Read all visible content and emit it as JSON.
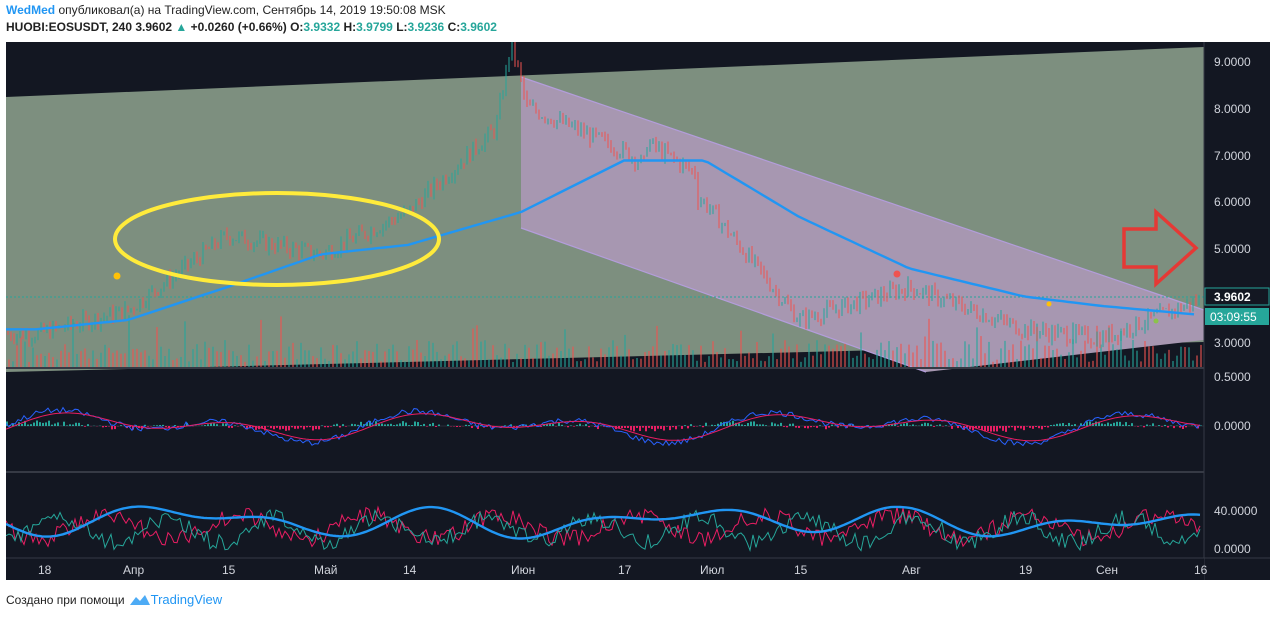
{
  "header": {
    "author": "WedMed",
    "published_text": "опубликовал(а) на TradingView.com, Сентябрь 14, 2019 19:50:08 MSK",
    "symbol": "HUOBI:EOSUSDT, 240",
    "last": "3.9602",
    "change_arrow": "▲",
    "change": "+0.0260 (+0.66%)",
    "o_label": "O:",
    "o": "3.9332",
    "h_label": "H:",
    "h": "3.9799",
    "l_label": "L:",
    "l": "3.9236",
    "c_label": "C:",
    "c": "3.9602"
  },
  "price_axis": {
    "ticks": [
      "9.0000",
      "8.0000",
      "7.0000",
      "6.0000",
      "5.0000",
      "3.0000"
    ],
    "last_price_label": "3.9602",
    "countdown_label": "03:09:55"
  },
  "macd_axis": {
    "ticks": [
      "0.5000",
      "0.0000"
    ]
  },
  "rsi_axis": {
    "ticks": [
      "40.0000",
      "0.0000"
    ]
  },
  "time_axis": {
    "ticks": [
      "18",
      "Апр",
      "15",
      "Май",
      "14",
      "Июн",
      "17",
      "Июл",
      "15",
      "Авг",
      "19",
      "Сен",
      "16"
    ]
  },
  "footer": {
    "created_with": "Создано при помощи",
    "brand": "TradingView"
  },
  "colors": {
    "background": "#131722",
    "upper_channel_fill": "#7d8f7f",
    "down_channel_fill": "#a797b1",
    "ma_line": "#2196f3",
    "ellipse": "#ffeb3b",
    "arrow": "#e53935",
    "candle_up": "#26a69a",
    "candle_down": "#ef5350",
    "macd_line": "#2962ff",
    "signal_line": "#e91e63",
    "countdown_bg": "#26a69a"
  },
  "chart_data": {
    "type": "line",
    "title": "",
    "symbol": "HUOBI:EOSUSDT",
    "interval": "240",
    "x": [
      "18",
      "Апр",
      "15",
      "Май",
      "14",
      "Июн",
      "17",
      "Июл",
      "15",
      "Авг",
      "19",
      "Сен",
      "16"
    ],
    "series": [
      {
        "values": [
          3.2,
          3.7,
          5.3,
          4.9,
          5.8,
          8.1,
          7.1,
          6.0,
          3.5,
          4.2,
          3.3,
          3.1,
          3.96
        ]
      },
      {
        "values": [
          3.3,
          3.5,
          4.2,
          4.9,
          5.1,
          5.8,
          6.9,
          6.9,
          5.7,
          4.6,
          4.0,
          3.8,
          3.6
        ]
      }
    ],
    "ylim": [
      2.6,
      9.3
    ],
    "last_close": 3.9602,
    "grid": false,
    "annotations": [
      "ellipse",
      "arrow"
    ]
  }
}
